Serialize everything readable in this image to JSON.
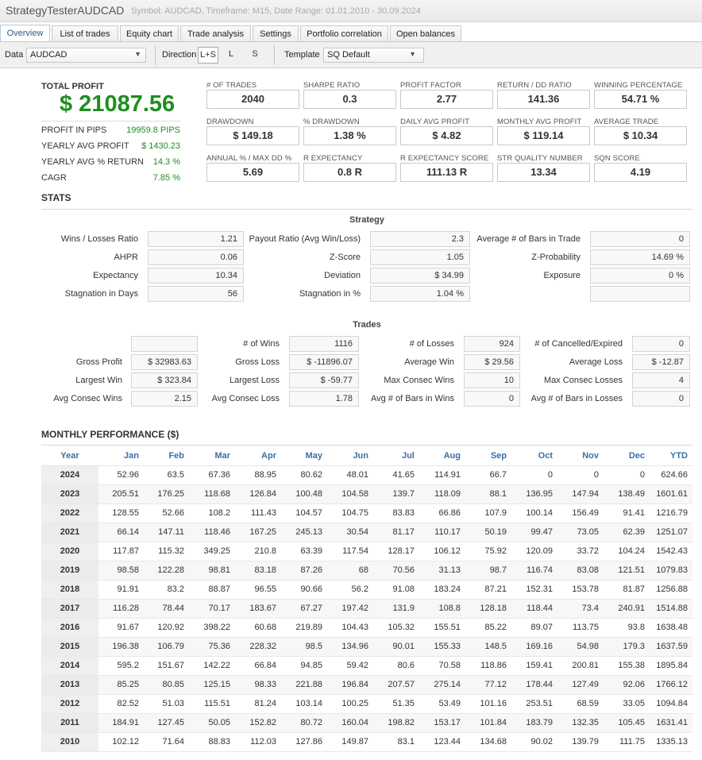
{
  "window": {
    "title": "StrategyTesterAUDCAD",
    "subtitle": "Symbol: AUDCAD, Timeframe: M15, Date Range: 01.01.2010 - 30.09.2024"
  },
  "tabs": [
    "Overview",
    "List of trades",
    "Equity chart",
    "Trade analysis",
    "Settings",
    "Portfolio correlation",
    "Open balances"
  ],
  "toolbar": {
    "data_label": "Data",
    "data_value": "AUDCAD",
    "direction_label": "Direction",
    "directions": [
      "L+S",
      "L",
      "S"
    ],
    "template_label": "Template",
    "template_value": "SQ Default"
  },
  "summary": {
    "total_profit_label": "TOTAL PROFIT",
    "total_profit_value": "$ 21087.56",
    "items": [
      {
        "label": "PROFIT IN PIPS",
        "value": "19959.8 PIPS"
      },
      {
        "label": "YEARLY AVG PROFIT",
        "value": "$ 1430.23"
      },
      {
        "label": "YEARLY AVG % RETURN",
        "value": "14.3 %"
      },
      {
        "label": "CAGR",
        "value": "7.85 %"
      }
    ]
  },
  "metrics": [
    {
      "label": "# OF TRADES",
      "value": "2040"
    },
    {
      "label": "SHARPE RATIO",
      "value": "0.3"
    },
    {
      "label": "PROFIT FACTOR",
      "value": "2.77"
    },
    {
      "label": "RETURN / DD RATIO",
      "value": "141.36"
    },
    {
      "label": "WINNING PERCENTAGE",
      "value": "54.71 %"
    },
    {
      "label": "DRAWDOWN",
      "value": "$ 149.18"
    },
    {
      "label": "% DRAWDOWN",
      "value": "1.38 %"
    },
    {
      "label": "DAILY AVG PROFIT",
      "value": "$ 4.82"
    },
    {
      "label": "MONTHLY AVG PROFIT",
      "value": "$ 119.14"
    },
    {
      "label": "AVERAGE TRADE",
      "value": "$ 10.34"
    },
    {
      "label": "ANNUAL % / MAX DD %",
      "value": "5.69"
    },
    {
      "label": "R EXPECTANCY",
      "value": "0.8 R"
    },
    {
      "label": "R EXPECTANCY SCORE",
      "value": "111.13 R"
    },
    {
      "label": "STR QUALITY NUMBER",
      "value": "13.34"
    },
    {
      "label": "SQN SCORE",
      "value": "4.19"
    }
  ],
  "stats": {
    "title": "STATS",
    "strategy_title": "Strategy",
    "strategy": [
      {
        "label": "Wins / Losses Ratio",
        "value": "1.21"
      },
      {
        "label": "Payout Ratio (Avg Win/Loss)",
        "value": "2.3"
      },
      {
        "label": "Average # of Bars in Trade",
        "value": "0"
      },
      {
        "label": "AHPR",
        "value": "0.06"
      },
      {
        "label": "Z-Score",
        "value": "1.05"
      },
      {
        "label": "Z-Probability",
        "value": "14.69 %"
      },
      {
        "label": "Expectancy",
        "value": "10.34"
      },
      {
        "label": "Deviation",
        "value": "$ 34.99"
      },
      {
        "label": "Exposure",
        "value": "0 %"
      },
      {
        "label": "Stagnation in Days",
        "value": "56"
      },
      {
        "label": "Stagnation in %",
        "value": "1.04 %"
      },
      {
        "label": "",
        "value": ""
      }
    ],
    "trades_title": "Trades",
    "trades": [
      {
        "label": "",
        "value": ""
      },
      {
        "label": "# of Wins",
        "value": "1116"
      },
      {
        "label": "# of Losses",
        "value": "924"
      },
      {
        "label": "# of Cancelled/Expired",
        "value": "0"
      },
      {
        "label": "Gross Profit",
        "value": "$ 32983.63"
      },
      {
        "label": "Gross Loss",
        "value": "$ -11896.07"
      },
      {
        "label": "Average Win",
        "value": "$ 29.56"
      },
      {
        "label": "Average Loss",
        "value": "$ -12.87"
      },
      {
        "label": "Largest Win",
        "value": "$ 323.84"
      },
      {
        "label": "Largest Loss",
        "value": "$ -59.77"
      },
      {
        "label": "Max Consec Wins",
        "value": "10"
      },
      {
        "label": "Max Consec Losses",
        "value": "4"
      },
      {
        "label": "Avg Consec Wins",
        "value": "2.15"
      },
      {
        "label": "Avg Consec Loss",
        "value": "1.78"
      },
      {
        "label": "Avg # of Bars in Wins",
        "value": "0"
      },
      {
        "label": "Avg # of Bars in Losses",
        "value": "0"
      }
    ]
  },
  "monthly": {
    "title": "MONTHLY PERFORMANCE ($)",
    "headers": [
      "Year",
      "Jan",
      "Feb",
      "Mar",
      "Apr",
      "May",
      "Jun",
      "Jul",
      "Aug",
      "Sep",
      "Oct",
      "Nov",
      "Dec",
      "YTD"
    ],
    "rows": [
      [
        "2024",
        "52.96",
        "63.5",
        "67.36",
        "88.95",
        "80.62",
        "48.01",
        "41.65",
        "114.91",
        "66.7",
        "0",
        "0",
        "0",
        "624.66"
      ],
      [
        "2023",
        "205.51",
        "176.25",
        "118.68",
        "126.84",
        "100.48",
        "104.58",
        "139.7",
        "118.09",
        "88.1",
        "136.95",
        "147.94",
        "138.49",
        "1601.61"
      ],
      [
        "2022",
        "128.55",
        "52.66",
        "108.2",
        "111.43",
        "104.57",
        "104.75",
        "83.83",
        "66.86",
        "107.9",
        "100.14",
        "156.49",
        "91.41",
        "1216.79"
      ],
      [
        "2021",
        "66.14",
        "147.11",
        "118.46",
        "167.25",
        "245.13",
        "30.54",
        "81.17",
        "110.17",
        "50.19",
        "99.47",
        "73.05",
        "62.39",
        "1251.07"
      ],
      [
        "2020",
        "117.87",
        "115.32",
        "349.25",
        "210.8",
        "63.39",
        "117.54",
        "128.17",
        "106.12",
        "75.92",
        "120.09",
        "33.72",
        "104.24",
        "1542.43"
      ],
      [
        "2019",
        "98.58",
        "122.28",
        "98.81",
        "83.18",
        "87.26",
        "68",
        "70.56",
        "31.13",
        "98.7",
        "116.74",
        "83.08",
        "121.51",
        "1079.83"
      ],
      [
        "2018",
        "91.91",
        "83.2",
        "88.87",
        "96.55",
        "90.66",
        "56.2",
        "91.08",
        "183.24",
        "87.21",
        "152.31",
        "153.78",
        "81.87",
        "1256.88"
      ],
      [
        "2017",
        "116.28",
        "78.44",
        "70.17",
        "183.67",
        "67.27",
        "197.42",
        "131.9",
        "108.8",
        "128.18",
        "118.44",
        "73.4",
        "240.91",
        "1514.88"
      ],
      [
        "2016",
        "91.67",
        "120.92",
        "398.22",
        "60.68",
        "219.89",
        "104.43",
        "105.32",
        "155.51",
        "85.22",
        "89.07",
        "113.75",
        "93.8",
        "1638.48"
      ],
      [
        "2015",
        "196.38",
        "106.79",
        "75.36",
        "228.32",
        "98.5",
        "134.96",
        "90.01",
        "155.33",
        "148.5",
        "169.16",
        "54.98",
        "179.3",
        "1637.59"
      ],
      [
        "2014",
        "595.2",
        "151.67",
        "142.22",
        "66.84",
        "94.85",
        "59.42",
        "80.6",
        "70.58",
        "118.86",
        "159.41",
        "200.81",
        "155.38",
        "1895.84"
      ],
      [
        "2013",
        "85.25",
        "80.85",
        "125.15",
        "98.33",
        "221.88",
        "196.84",
        "207.57",
        "275.14",
        "77.12",
        "178.44",
        "127.49",
        "92.06",
        "1766.12"
      ],
      [
        "2012",
        "82.52",
        "51.03",
        "115.51",
        "81.24",
        "103.14",
        "100.25",
        "51.35",
        "53.49",
        "101.16",
        "253.51",
        "68.59",
        "33.05",
        "1094.84"
      ],
      [
        "2011",
        "184.91",
        "127.45",
        "50.05",
        "152.82",
        "80.72",
        "160.04",
        "198.82",
        "153.17",
        "101.84",
        "183.79",
        "132.35",
        "105.45",
        "1631.41"
      ],
      [
        "2010",
        "102.12",
        "71.64",
        "88.83",
        "112.03",
        "127.86",
        "149.87",
        "83.1",
        "123.44",
        "134.68",
        "90.02",
        "139.79",
        "111.75",
        "1335.13"
      ]
    ]
  }
}
